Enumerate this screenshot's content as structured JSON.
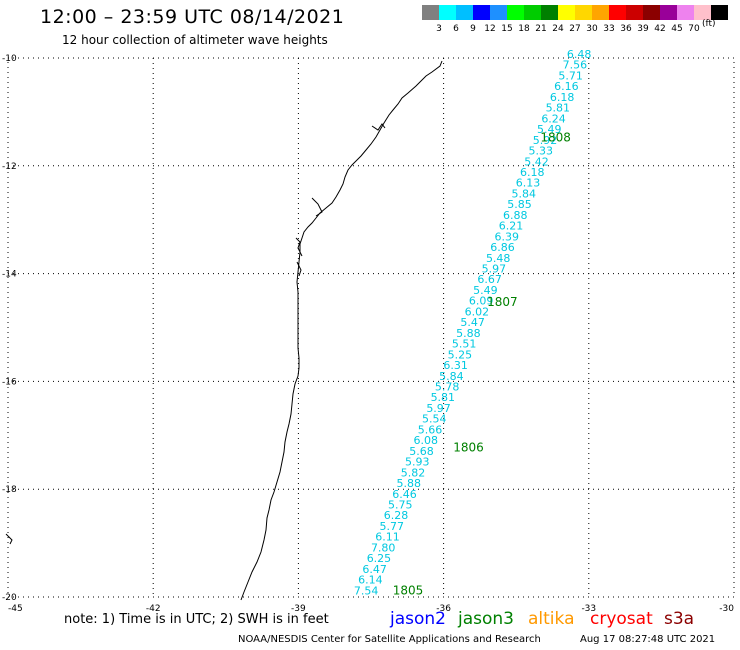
{
  "header": {
    "title": "12:00 – 23:59 UTC 08/14/2021",
    "subtitle": "12 hour collection of altimeter wave heights"
  },
  "legend": {
    "swatches": [
      {
        "color": "#808080",
        "label": ""
      },
      {
        "color": "#00ffff",
        "label": "3"
      },
      {
        "color": "#00bfff",
        "label": "6"
      },
      {
        "color": "#0000ff",
        "label": "9"
      },
      {
        "color": "#1e90ff",
        "label": "12"
      },
      {
        "color": "#00ff00",
        "label": "15"
      },
      {
        "color": "#00cc00",
        "label": "18"
      },
      {
        "color": "#008000",
        "label": "21"
      },
      {
        "color": "#ffff00",
        "label": "24"
      },
      {
        "color": "#ffd700",
        "label": "27"
      },
      {
        "color": "#ffa500",
        "label": "30"
      },
      {
        "color": "#ff0000",
        "label": "33"
      },
      {
        "color": "#cc0000",
        "label": "36"
      },
      {
        "color": "#8b0000",
        "label": "39"
      },
      {
        "color": "#990099",
        "label": "42"
      },
      {
        "color": "#ee82ee",
        "label": "45"
      },
      {
        "color": "#ffc0cb",
        "label": "70"
      },
      {
        "color": "#000000",
        "label": ""
      }
    ],
    "unit": "(ft)"
  },
  "axes": {
    "lon_ticks": [
      "-45",
      "-42",
      "-39",
      "-36",
      "-33",
      "-30"
    ],
    "lat_ticks": [
      "-10",
      "-12",
      "-14",
      "-16",
      "-18",
      "-20"
    ],
    "lon_range": [
      -45,
      -30
    ],
    "lat_range": [
      -10,
      -20
    ]
  },
  "track": {
    "color": "#00c8e0",
    "start": {
      "lon": -33.2,
      "lat": -10.0
    },
    "end": {
      "lon": -37.6,
      "lat": -19.95
    },
    "values": [
      "6.48",
      "7.56",
      "5.71",
      "6.16",
      "6.18",
      "5.81",
      "6.24",
      "5.49",
      "5.92",
      "5.33",
      "5.42",
      "6.18",
      "6.13",
      "5.84",
      "5.85",
      "6.88",
      "6.21",
      "6.39",
      "6.86",
      "5.48",
      "5.97",
      "6.67",
      "5.49",
      "6.09",
      "6.02",
      "5.47",
      "5.88",
      "5.51",
      "5.25",
      "6.31",
      "5.84",
      "5.78",
      "5.81",
      "5.97",
      "5.54",
      "5.66",
      "6.08",
      "5.68",
      "5.93",
      "5.82",
      "5.88",
      "6.46",
      "5.75",
      "6.28",
      "5.77",
      "6.11",
      "7.80",
      "6.25",
      "6.47",
      "6.14",
      "7.54"
    ],
    "passes": [
      {
        "label": "1808",
        "lon": -34.0,
        "lat": -11.55
      },
      {
        "label": "1807",
        "lon": -35.1,
        "lat": -14.6
      },
      {
        "label": "1806",
        "lon": -35.8,
        "lat": -17.3
      },
      {
        "label": "1805",
        "lon": -37.05,
        "lat": -19.95
      }
    ],
    "pass_color": "#008000"
  },
  "note": "note: 1) Time is in UTC; 2) SWH is in feet",
  "satellites": [
    {
      "name": "jason2",
      "color": "#0000ff"
    },
    {
      "name": "jason3",
      "color": "#008000"
    },
    {
      "name": "altika",
      "color": "#ff9900"
    },
    {
      "name": "cryosat",
      "color": "#ff0000"
    },
    {
      "name": "s3a",
      "color": "#8b0000"
    }
  ],
  "footer": {
    "credit": "NOAA/NESDIS Center for Satellite Applications and Research",
    "timestamp": "Aug 17 08:27:48 UTC 2021"
  }
}
